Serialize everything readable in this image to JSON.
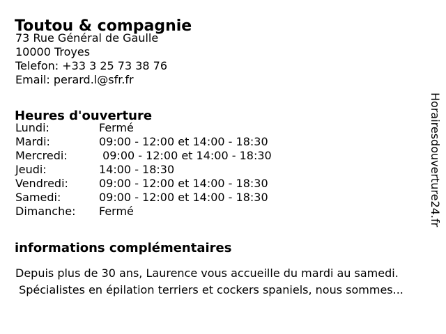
{
  "colors": {
    "background": "#ffffff",
    "text": "#000000"
  },
  "business": {
    "name": "Toutou & compagnie",
    "contact_lines": [
      "73 Rue Général de Gaulle",
      "10000 Troyes",
      "Telefon: +33 3 25 73 38 76",
      "Email: perard.l@sfr.fr"
    ]
  },
  "hours": {
    "heading": "Heures d'ouverture",
    "rows": [
      {
        "day": "Lundi:",
        "times": "Fermé"
      },
      {
        "day": "Mardi:",
        "times": "09:00 - 12:00 et 14:00 - 18:30"
      },
      {
        "day": "Mercredi:",
        "times": " 09:00 - 12:00 et 14:00 - 18:30"
      },
      {
        "day": "Jeudi:",
        "times": "14:00 - 18:30"
      },
      {
        "day": "Vendredi:",
        "times": "09:00 - 12:00 et 14:00 - 18:30"
      },
      {
        "day": "Samedi:",
        "times": "09:00 - 12:00 et 14:00 - 18:30"
      },
      {
        "day": "Dimanche:",
        "times": "Fermé"
      }
    ]
  },
  "info": {
    "heading": "informations complémentaires",
    "text": "Depuis plus de 30 ans, Laurence vous accueille du mardi au samedi.\n Spécialistes en épilation terriers et cockers spaniels, nous sommes..."
  },
  "watermark": "Horairesdouverture24.fr"
}
